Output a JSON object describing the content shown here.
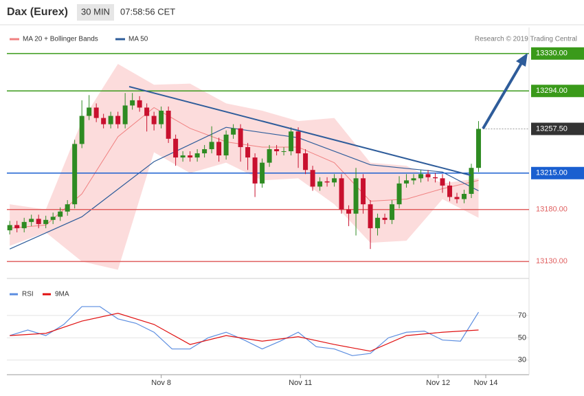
{
  "chart_data": {
    "type": "candlestick",
    "title": "Dax (Eurex)",
    "timeframe": "30 MIN",
    "time": "07:58:56 CET",
    "source": "Research © 2019 Trading Central",
    "up_color": "#2e8b22",
    "down_color": "#c8102e",
    "xlim": [
      -0.4,
      72
    ],
    "xticks": [
      {
        "value": 21,
        "label": "Nov 8"
      },
      {
        "value": 40.3,
        "label": "Nov 11"
      },
      {
        "value": 59.4,
        "label": "Nov 12"
      },
      {
        "value": 66,
        "label": "Nov 14"
      }
    ],
    "ylim": [
      13117,
      13355
    ],
    "open": [
      13160,
      13165,
      13162,
      13168,
      13171,
      13166,
      13170,
      13173,
      13178,
      13185,
      13243,
      13270,
      13278,
      13268,
      13262,
      13270,
      13262,
      13280,
      13285,
      13278,
      13270,
      13262,
      13275,
      13248,
      13230,
      13232,
      13230,
      13234,
      13238,
      13245,
      13232,
      13252,
      13258,
      13240,
      13230,
      13205,
      13225,
      13238,
      13236,
      13236,
      13255,
      13234,
      13218,
      13202,
      13207,
      13206,
      13210,
      13180,
      13176,
      13210,
      13185,
      13162,
      13172,
      13170,
      13185,
      13205,
      13208,
      13210,
      13214,
      13211,
      13210,
      13203,
      13192,
      13190,
      13195,
      13220
    ],
    "high": [
      13169,
      13169,
      13172,
      13175,
      13175,
      13174,
      13177,
      13182,
      13189,
      13247,
      13285,
      13290,
      13282,
      13272,
      13274,
      13274,
      13292,
      13292,
      13289,
      13282,
      13274,
      13279,
      13279,
      13252,
      13236,
      13236,
      13238,
      13242,
      13260,
      13249,
      13256,
      13262,
      13262,
      13244,
      13234,
      13229,
      13242,
      13242,
      13240,
      13259,
      13259,
      13238,
      13222,
      13211,
      13211,
      13214,
      13214,
      13184,
      13220,
      13214,
      13189,
      13176,
      13176,
      13189,
      13212,
      13214,
      13214,
      13218,
      13218,
      13215,
      13214,
      13207,
      13196,
      13199,
      13224,
      13265
    ],
    "low": [
      13156,
      13158,
      13158,
      13164,
      13162,
      13162,
      13166,
      13169,
      13174,
      13181,
      13239,
      13266,
      13264,
      13258,
      13258,
      13258,
      13258,
      13276,
      13274,
      13255,
      13256,
      13258,
      13244,
      13222,
      13226,
      13226,
      13226,
      13230,
      13234,
      13226,
      13228,
      13248,
      13226,
      13218,
      13192,
      13201,
      13221,
      13232,
      13232,
      13232,
      13220,
      13214,
      13198,
      13198,
      13202,
      13202,
      13176,
      13164,
      13155,
      13176,
      13142,
      13155,
      13166,
      13166,
      13181,
      13201,
      13204,
      13206,
      13207,
      13206,
      13196,
      13188,
      13186,
      13186,
      13191,
      13216
    ],
    "close": [
      13165,
      13162,
      13168,
      13171,
      13166,
      13170,
      13173,
      13178,
      13185,
      13243,
      13270,
      13278,
      13268,
      13262,
      13270,
      13262,
      13280,
      13285,
      13278,
      13270,
      13262,
      13275,
      13248,
      13230,
      13232,
      13230,
      13234,
      13238,
      13245,
      13232,
      13252,
      13258,
      13240,
      13230,
      13205,
      13225,
      13238,
      13236,
      13236,
      13255,
      13234,
      13218,
      13202,
      13207,
      13206,
      13210,
      13180,
      13176,
      13210,
      13185,
      13162,
      13172,
      13170,
      13185,
      13205,
      13208,
      13210,
      13214,
      13211,
      13210,
      13203,
      13192,
      13190,
      13195,
      13220,
      13257.5
    ],
    "bollinger": {
      "name": "MA 20 + Bollinger Bands",
      "color": "#f08080",
      "band_color": "#fbd3d3",
      "x": [
        0,
        5,
        10,
        15,
        20,
        25,
        30,
        35,
        40,
        45,
        50,
        55,
        60,
        65
      ],
      "upper": [
        13185,
        13180,
        13265,
        13320,
        13300,
        13301,
        13282,
        13275,
        13265,
        13268,
        13225,
        13222,
        13205,
        13210
      ],
      "middle": [
        13162,
        13165,
        13195,
        13250,
        13278,
        13258,
        13245,
        13240,
        13240,
        13225,
        13188,
        13190,
        13200,
        13208
      ],
      "lower": [
        13145,
        13158,
        13130,
        13122,
        13235,
        13215,
        13225,
        13208,
        13210,
        13185,
        13148,
        13150,
        13190,
        13172
      ]
    },
    "ma50": {
      "name": "MA 50",
      "color": "#2e5c9a",
      "x": [
        0,
        10,
        20,
        30,
        40,
        50,
        60,
        65
      ],
      "values": [
        13142,
        13173,
        13226,
        13259,
        13249,
        13223,
        13216,
        13198
      ]
    },
    "levels": [
      {
        "value": 13330,
        "label": "13330.00",
        "color": "#3a9a1a",
        "filled": true,
        "dotted": false
      },
      {
        "value": 13294,
        "label": "13294.00",
        "color": "#3a9a1a",
        "filled": true,
        "dotted": false
      },
      {
        "value": 13257.5,
        "label": "13257.50",
        "color": "#333333",
        "filled": true,
        "dotted": true
      },
      {
        "value": 13215,
        "label": "13215.00",
        "color": "#1a5fd0",
        "filled": true,
        "dotted": false
      },
      {
        "value": 13180,
        "label": "13180.00",
        "color": "#e06060",
        "filled": false,
        "dotted": false
      },
      {
        "value": 13130,
        "label": "13130.00",
        "color": "#e06060",
        "filled": false,
        "dotted": false
      }
    ],
    "rsi_panel": {
      "ylim": [
        20,
        94
      ],
      "yticks": [
        30,
        50,
        70
      ],
      "series": [
        {
          "name": "RSI",
          "color": "#5b8de0",
          "x": [
            0,
            2.5,
            5,
            7.5,
            10,
            12.5,
            15,
            17.5,
            20,
            22.5,
            25,
            27.5,
            30,
            32.5,
            35,
            37.5,
            40,
            42.5,
            45,
            47.5,
            50,
            52.5,
            55,
            57.5,
            60,
            62.5,
            65
          ],
          "values": [
            52,
            57,
            52,
            62,
            78,
            78,
            67,
            63,
            55,
            40,
            40,
            50,
            55,
            48,
            40,
            47,
            55,
            42,
            40,
            34,
            36,
            50,
            55,
            56,
            48,
            47,
            73
          ]
        },
        {
          "name": "9MA",
          "color": "#e01010",
          "x": [
            0,
            5,
            10,
            15,
            20,
            25,
            30,
            35,
            40,
            45,
            50,
            55,
            60,
            65
          ],
          "values": [
            52,
            54,
            65,
            72,
            62,
            44,
            52,
            47,
            51,
            44,
            38,
            52,
            55,
            57
          ]
        }
      ]
    }
  }
}
